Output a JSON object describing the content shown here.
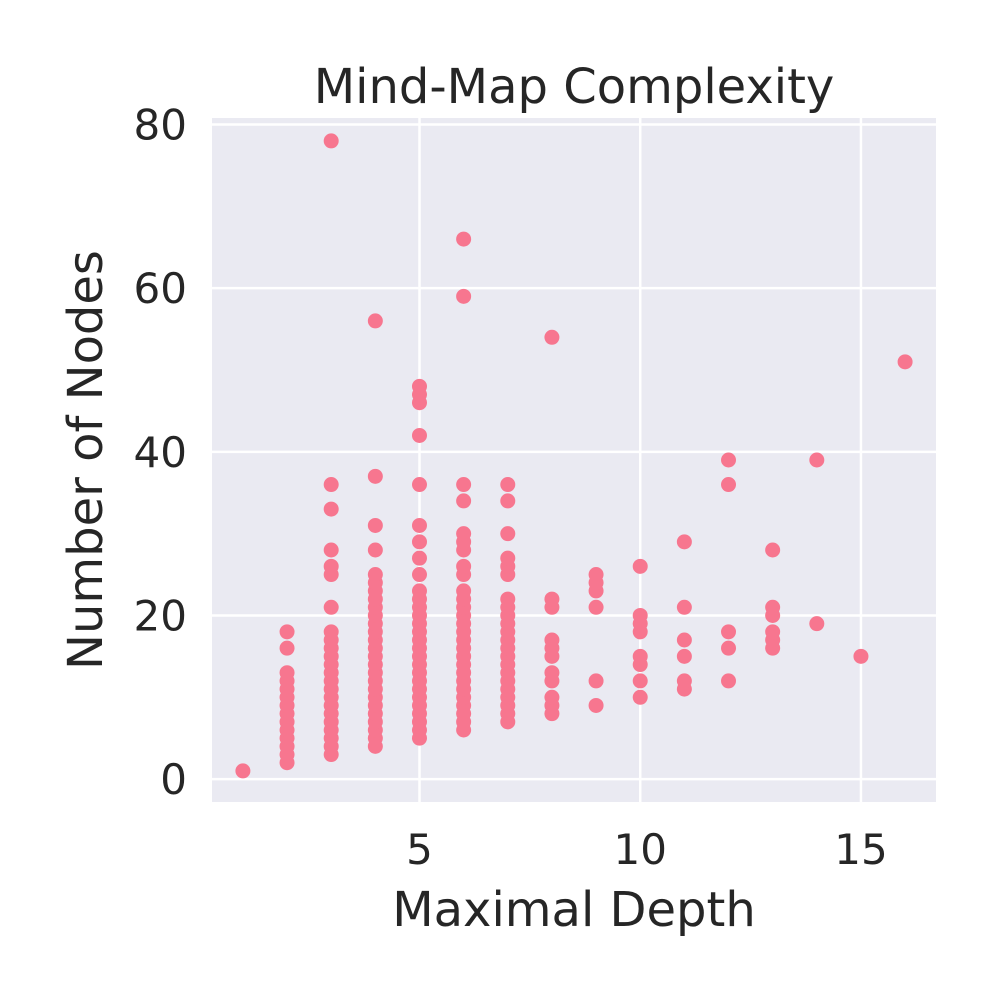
{
  "chart_data": {
    "type": "scatter",
    "title": "Mind-Map Complexity",
    "xlabel": "Maximal Depth",
    "ylabel": "Number of Nodes",
    "xlim": [
      0.3,
      16.7
    ],
    "ylim": [
      -2.8,
      80.8
    ],
    "xticks": [
      5,
      10,
      15
    ],
    "yticks": [
      0,
      20,
      40,
      60,
      80
    ],
    "grid": true,
    "colors": {
      "point": "#F7768F",
      "background": "#EAEAF2",
      "grid": "#FFFFFF"
    },
    "series": [
      {
        "points": [
          [
            1,
            1
          ],
          [
            2,
            2
          ],
          [
            2,
            3
          ],
          [
            2,
            4
          ],
          [
            2,
            5
          ],
          [
            2,
            6
          ],
          [
            2,
            7
          ],
          [
            2,
            8
          ],
          [
            2,
            9
          ],
          [
            2,
            10
          ],
          [
            2,
            11
          ],
          [
            2,
            12
          ],
          [
            2,
            13
          ],
          [
            2,
            16
          ],
          [
            2,
            18
          ],
          [
            3,
            3
          ],
          [
            3,
            4
          ],
          [
            3,
            5
          ],
          [
            3,
            6
          ],
          [
            3,
            7
          ],
          [
            3,
            8
          ],
          [
            3,
            9
          ],
          [
            3,
            10
          ],
          [
            3,
            11
          ],
          [
            3,
            12
          ],
          [
            3,
            13
          ],
          [
            3,
            14
          ],
          [
            3,
            15
          ],
          [
            3,
            16
          ],
          [
            3,
            17
          ],
          [
            3,
            18
          ],
          [
            3,
            21
          ],
          [
            3,
            25
          ],
          [
            3,
            26
          ],
          [
            3,
            28
          ],
          [
            3,
            33
          ],
          [
            3,
            36
          ],
          [
            3,
            78
          ],
          [
            4,
            4
          ],
          [
            4,
            5
          ],
          [
            4,
            6
          ],
          [
            4,
            7
          ],
          [
            4,
            8
          ],
          [
            4,
            9
          ],
          [
            4,
            10
          ],
          [
            4,
            11
          ],
          [
            4,
            12
          ],
          [
            4,
            13
          ],
          [
            4,
            14
          ],
          [
            4,
            15
          ],
          [
            4,
            16
          ],
          [
            4,
            17
          ],
          [
            4,
            18
          ],
          [
            4,
            19
          ],
          [
            4,
            20
          ],
          [
            4,
            21
          ],
          [
            4,
            22
          ],
          [
            4,
            23
          ],
          [
            4,
            24
          ],
          [
            4,
            25
          ],
          [
            4,
            28
          ],
          [
            4,
            31
          ],
          [
            4,
            37
          ],
          [
            4,
            56
          ],
          [
            5,
            5
          ],
          [
            5,
            6
          ],
          [
            5,
            7
          ],
          [
            5,
            8
          ],
          [
            5,
            9
          ],
          [
            5,
            10
          ],
          [
            5,
            11
          ],
          [
            5,
            12
          ],
          [
            5,
            13
          ],
          [
            5,
            14
          ],
          [
            5,
            15
          ],
          [
            5,
            16
          ],
          [
            5,
            17
          ],
          [
            5,
            18
          ],
          [
            5,
            19
          ],
          [
            5,
            20
          ],
          [
            5,
            21
          ],
          [
            5,
            22
          ],
          [
            5,
            23
          ],
          [
            5,
            25
          ],
          [
            5,
            27
          ],
          [
            5,
            29
          ],
          [
            5,
            31
          ],
          [
            5,
            36
          ],
          [
            5,
            42
          ],
          [
            5,
            46
          ],
          [
            5,
            47
          ],
          [
            5,
            48
          ],
          [
            6,
            6
          ],
          [
            6,
            7
          ],
          [
            6,
            8
          ],
          [
            6,
            9
          ],
          [
            6,
            10
          ],
          [
            6,
            11
          ],
          [
            6,
            12
          ],
          [
            6,
            13
          ],
          [
            6,
            14
          ],
          [
            6,
            15
          ],
          [
            6,
            16
          ],
          [
            6,
            17
          ],
          [
            6,
            18
          ],
          [
            6,
            19
          ],
          [
            6,
            20
          ],
          [
            6,
            21
          ],
          [
            6,
            22
          ],
          [
            6,
            23
          ],
          [
            6,
            25
          ],
          [
            6,
            26
          ],
          [
            6,
            28
          ],
          [
            6,
            29
          ],
          [
            6,
            30
          ],
          [
            6,
            34
          ],
          [
            6,
            36
          ],
          [
            6,
            59
          ],
          [
            6,
            66
          ],
          [
            7,
            7
          ],
          [
            7,
            8
          ],
          [
            7,
            9
          ],
          [
            7,
            10
          ],
          [
            7,
            11
          ],
          [
            7,
            12
          ],
          [
            7,
            13
          ],
          [
            7,
            14
          ],
          [
            7,
            15
          ],
          [
            7,
            16
          ],
          [
            7,
            17
          ],
          [
            7,
            18
          ],
          [
            7,
            19
          ],
          [
            7,
            20
          ],
          [
            7,
            21
          ],
          [
            7,
            22
          ],
          [
            7,
            25
          ],
          [
            7,
            26
          ],
          [
            7,
            27
          ],
          [
            7,
            30
          ],
          [
            7,
            34
          ],
          [
            7,
            36
          ],
          [
            8,
            8
          ],
          [
            8,
            9
          ],
          [
            8,
            10
          ],
          [
            8,
            12
          ],
          [
            8,
            13
          ],
          [
            8,
            15
          ],
          [
            8,
            16
          ],
          [
            8,
            17
          ],
          [
            8,
            21
          ],
          [
            8,
            22
          ],
          [
            8,
            54
          ],
          [
            9,
            9
          ],
          [
            9,
            12
          ],
          [
            9,
            21
          ],
          [
            9,
            23
          ],
          [
            9,
            24
          ],
          [
            9,
            25
          ],
          [
            10,
            10
          ],
          [
            10,
            12
          ],
          [
            10,
            14
          ],
          [
            10,
            15
          ],
          [
            10,
            18
          ],
          [
            10,
            19
          ],
          [
            10,
            20
          ],
          [
            10,
            26
          ],
          [
            11,
            11
          ],
          [
            11,
            12
          ],
          [
            11,
            15
          ],
          [
            11,
            17
          ],
          [
            11,
            21
          ],
          [
            11,
            29
          ],
          [
            12,
            12
          ],
          [
            12,
            16
          ],
          [
            12,
            18
          ],
          [
            12,
            36
          ],
          [
            12,
            39
          ],
          [
            13,
            16
          ],
          [
            13,
            17
          ],
          [
            13,
            18
          ],
          [
            13,
            20
          ],
          [
            13,
            21
          ],
          [
            13,
            28
          ],
          [
            14,
            19
          ],
          [
            14,
            39
          ],
          [
            15,
            15
          ],
          [
            16,
            51
          ]
        ]
      }
    ]
  }
}
